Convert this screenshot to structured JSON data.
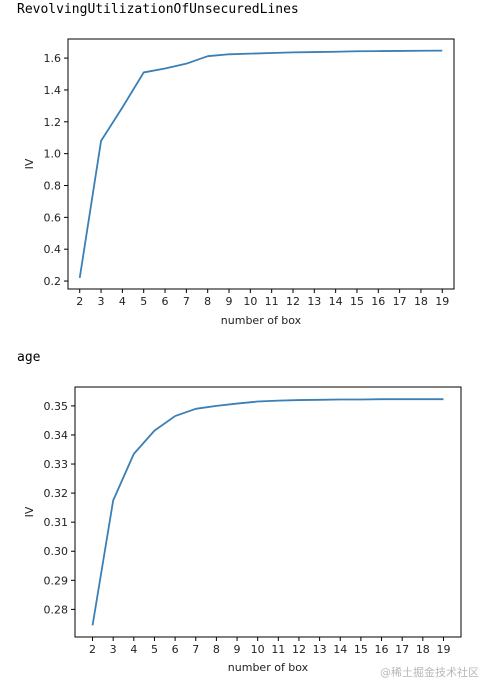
{
  "titles": [
    "RevolvingUtilizationOfUnsecuredLines",
    "age"
  ],
  "watermark": "@稀土掘金技术社区",
  "chart_data": [
    {
      "type": "line",
      "title": "RevolvingUtilizationOfUnsecuredLines",
      "xlabel": "number of box",
      "ylabel": "IV",
      "x": [
        2,
        3,
        4,
        5,
        6,
        7,
        8,
        9,
        10,
        11,
        12,
        13,
        14,
        15,
        16,
        17,
        18,
        19
      ],
      "series": [
        {
          "values": [
            0.22,
            1.08,
            1.29,
            1.51,
            1.535,
            1.565,
            1.612,
            1.624,
            1.628,
            1.632,
            1.636,
            1.638,
            1.64,
            1.643,
            1.644,
            1.645,
            1.646,
            1.647
          ]
        }
      ],
      "xlim": [
        1.45,
        19.55
      ],
      "ylim": [
        0.15,
        1.72
      ],
      "yticks": [
        0.2,
        0.4,
        0.6,
        0.8,
        1.0,
        1.2,
        1.4,
        1.6
      ],
      "ytick_labels": [
        "0.2",
        "0.4",
        "0.6",
        "0.8",
        "1.0",
        "1.2",
        "1.4",
        "1.6"
      ],
      "color": "#3a7fb5",
      "grid": false
    },
    {
      "type": "line",
      "title": "age",
      "xlabel": "number of box",
      "ylabel": "IV",
      "x": [
        2,
        3,
        4,
        5,
        6,
        7,
        8,
        9,
        10,
        11,
        12,
        13,
        14,
        15,
        16,
        17,
        18,
        19
      ],
      "series": [
        {
          "values": [
            0.2745,
            0.3175,
            0.3335,
            0.3415,
            0.3465,
            0.349,
            0.35,
            0.3508,
            0.3515,
            0.3518,
            0.352,
            0.3521,
            0.3522,
            0.3522,
            0.3523,
            0.3523,
            0.3523,
            0.3523
          ]
        }
      ],
      "xlim": [
        1.15,
        19.85
      ],
      "ylim": [
        0.2705,
        0.3565
      ],
      "yticks": [
        0.28,
        0.29,
        0.3,
        0.31,
        0.32,
        0.33,
        0.34,
        0.35
      ],
      "ytick_labels": [
        "0.28",
        "0.29",
        "0.30",
        "0.31",
        "0.32",
        "0.33",
        "0.34",
        "0.35"
      ],
      "color": "#3a7fb5",
      "grid": false
    }
  ]
}
